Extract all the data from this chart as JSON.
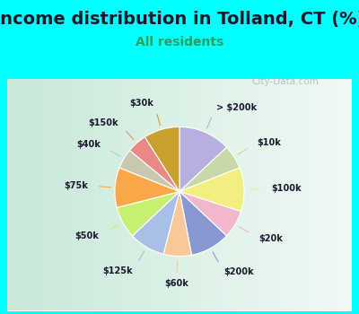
{
  "title": "Income distribution in Tolland, CT (%)",
  "subtitle": "All residents",
  "watermark": "City-Data.com",
  "background_color": "#00FFFF",
  "chart_bg_top": "#e8f5f0",
  "chart_bg_bottom": "#f5faf7",
  "labels": [
    "> $200k",
    "$10k",
    "$100k",
    "$20k",
    "$200k",
    "$60k",
    "$125k",
    "$50k",
    "$75k",
    "$40k",
    "$150k",
    "$30k"
  ],
  "values": [
    13,
    6,
    11,
    7,
    10,
    7,
    9,
    8,
    10,
    5,
    5,
    9
  ],
  "colors": [
    "#b8aee0",
    "#c8d8a8",
    "#f0ef80",
    "#f0b8c8",
    "#8898d0",
    "#f8c898",
    "#a8c0e8",
    "#c8f070",
    "#f8a848",
    "#c8c8b0",
    "#e88888",
    "#c8a030"
  ],
  "title_fontsize": 14,
  "subtitle_fontsize": 10,
  "label_fontsize": 7
}
